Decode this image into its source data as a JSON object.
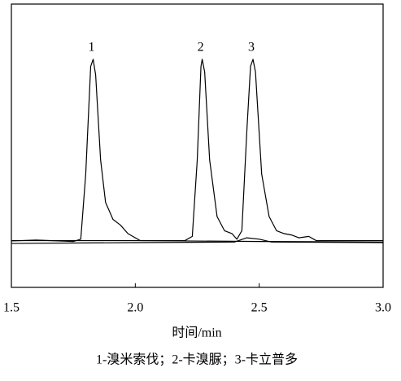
{
  "chart_data": {
    "type": "line",
    "x_label": "时间/min",
    "caption": "1-溴米索伐；2-卡溴脲；3-卡立普多",
    "xlim": [
      1.5,
      3.0
    ],
    "xticks": [
      1.5,
      {
        "value": 2,
        "label": "2.0"
      },
      2.5,
      {
        "value": 3,
        "label": "3.0"
      }
    ],
    "ylim": [
      0,
      100
    ],
    "peaks": [
      {
        "label": "1",
        "x": 1.83
      },
      {
        "label": "2",
        "x": 2.27
      },
      {
        "label": "3",
        "x": 2.475
      }
    ],
    "series": [
      {
        "color": "#000000",
        "x": [
          1.5,
          1.6,
          1.75,
          1.78,
          1.8,
          1.82,
          1.83,
          1.84,
          1.86,
          1.88,
          1.91,
          1.94,
          1.97,
          1.99,
          2.02,
          2.5,
          3.0
        ],
        "values": [
          16.4,
          16.7,
          16.2,
          17,
          40,
          78,
          80.5,
          75,
          45,
          30,
          24,
          22,
          19,
          18,
          16.5,
          16.2,
          16.0
        ]
      },
      {
        "color": "#000000",
        "x": [
          1.5,
          2.2,
          2.23,
          2.25,
          2.265,
          2.27,
          2.28,
          2.3,
          2.33,
          2.36,
          2.39,
          2.41,
          2.43,
          2.45,
          2.465,
          2.475,
          2.485,
          2.51,
          2.54,
          2.57,
          2.6,
          2.63,
          2.66,
          2.7,
          2.73,
          3.0
        ],
        "values": [
          16.5,
          16.5,
          18,
          45,
          78,
          80.5,
          76,
          45,
          25,
          20,
          19,
          17,
          20,
          55,
          78,
          80.5,
          76,
          40,
          25,
          20,
          19,
          18.5,
          17.5,
          18,
          16.5,
          16.5
        ]
      },
      {
        "color": "#000000",
        "x": [
          1.5,
          2.0,
          2.4,
          2.45,
          2.5,
          2.55,
          3.0
        ],
        "values": [
          15.5,
          15.8,
          16,
          17.5,
          17,
          16,
          15.8
        ]
      }
    ]
  }
}
